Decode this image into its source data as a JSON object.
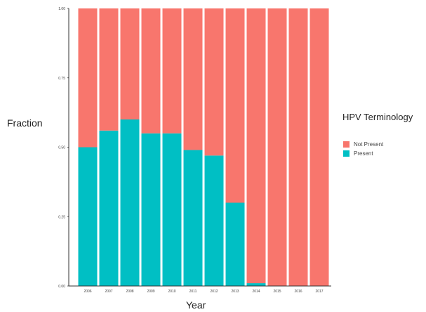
{
  "chart_data": {
    "type": "bar",
    "stacked": true,
    "categories": [
      "2006",
      "2007",
      "2008",
      "2009",
      "2010",
      "2011",
      "2012",
      "2013",
      "2014",
      "2015",
      "2016",
      "2017"
    ],
    "series": [
      {
        "name": "Not Present",
        "color": "#F8766D",
        "values": [
          0.5,
          0.44,
          0.4,
          0.45,
          0.45,
          0.51,
          0.53,
          0.7,
          0.99,
          1.0,
          1.0,
          1.0
        ]
      },
      {
        "name": "Present",
        "color": "#00BFC4",
        "values": [
          0.5,
          0.56,
          0.6,
          0.55,
          0.55,
          0.49,
          0.47,
          0.3,
          0.01,
          0.0,
          0.0,
          0.0
        ]
      }
    ],
    "xlabel": "Year",
    "ylabel": "Fraction",
    "ylim": [
      0,
      1
    ],
    "yticks": [
      "0.00",
      "0.25",
      "0.50",
      "0.75",
      "1.00"
    ],
    "grid": false,
    "legend": {
      "title": "HPV Terminology",
      "placement": "right",
      "entries": [
        "Not Present",
        "Present"
      ]
    }
  }
}
